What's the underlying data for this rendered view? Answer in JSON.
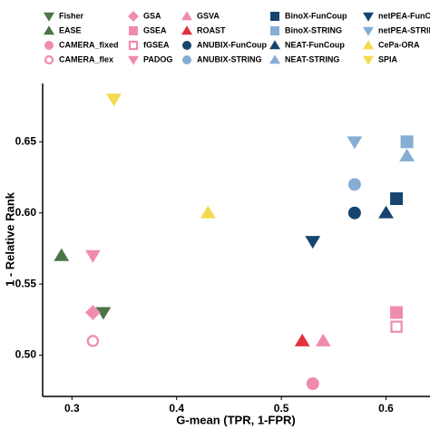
{
  "chart_data": {
    "type": "scatter",
    "x_label": "G-mean (TPR, 1-FPR)",
    "y_label": "1 - Relative Rank",
    "xlim": [
      0.272,
      0.642
    ],
    "ylim": [
      0.471,
      0.691
    ],
    "xticks": [
      0.3,
      0.4,
      0.5,
      0.6
    ],
    "yticks": [
      {
        "value": 0.5,
        "label": "0.50"
      },
      0.55,
      {
        "value": 0.6,
        "label": "0.60"
      },
      0.65
    ],
    "grid": false,
    "series": [
      {
        "name": "Fisher",
        "color": "#4b7548",
        "marker": "triangle-down",
        "filled": true,
        "x": [
          0.33
        ],
        "y": [
          0.53
        ]
      },
      {
        "name": "EASE",
        "color": "#4b7548",
        "marker": "triangle-up",
        "filled": true,
        "x": [
          0.29
        ],
        "y": [
          0.57
        ]
      },
      {
        "name": "CAMERA_fixed",
        "color": "#f08cab",
        "marker": "circle",
        "filled": true,
        "x": [
          0.53
        ],
        "y": [
          0.48
        ]
      },
      {
        "name": "CAMERA_flex",
        "color": "#f08cab",
        "marker": "circle",
        "filled": false,
        "x": [
          0.32
        ],
        "y": [
          0.51
        ]
      },
      {
        "name": "GSA",
        "color": "#f08cab",
        "marker": "diamond",
        "filled": true,
        "x": [
          0.32
        ],
        "y": [
          0.53
        ]
      },
      {
        "name": "GSEA",
        "color": "#f08cab",
        "marker": "square",
        "filled": true,
        "x": [
          0.61
        ],
        "y": [
          0.53
        ]
      },
      {
        "name": "fGSEA",
        "color": "#f08cab",
        "marker": "square",
        "filled": false,
        "x": [
          0.61
        ],
        "y": [
          0.52
        ]
      },
      {
        "name": "PADOG",
        "color": "#f08cab",
        "marker": "triangle-down",
        "filled": true,
        "x": [
          0.32
        ],
        "y": [
          0.57
        ]
      },
      {
        "name": "GSVA",
        "color": "#f08cab",
        "marker": "triangle-up",
        "filled": true,
        "x": [
          0.54
        ],
        "y": [
          0.51
        ]
      },
      {
        "name": "ROAST",
        "color": "#e2303d",
        "marker": "triangle-up",
        "filled": true,
        "x": [
          0.52
        ],
        "y": [
          0.51
        ]
      },
      {
        "name": "ANUBIX-FunCoup",
        "color": "#17446f",
        "marker": "circle",
        "filled": true,
        "x": [
          0.57
        ],
        "y": [
          0.6
        ]
      },
      {
        "name": "ANUBIX-STRING",
        "color": "#86add4",
        "marker": "circle",
        "filled": true,
        "x": [
          0.57
        ],
        "y": [
          0.62
        ]
      },
      {
        "name": "BinoX-FunCoup",
        "color": "#17446f",
        "marker": "square",
        "filled": true,
        "x": [
          0.61
        ],
        "y": [
          0.61
        ]
      },
      {
        "name": "BinoX-STRING",
        "color": "#86add4",
        "marker": "square",
        "filled": true,
        "x": [
          0.62
        ],
        "y": [
          0.65
        ]
      },
      {
        "name": "NEAT-FunCoup",
        "color": "#17446f",
        "marker": "triangle-up",
        "filled": true,
        "x": [
          0.6
        ],
        "y": [
          0.6
        ]
      },
      {
        "name": "NEAT-STRING",
        "color": "#86add4",
        "marker": "triangle-up",
        "filled": true,
        "x": [
          0.62
        ],
        "y": [
          0.64
        ]
      },
      {
        "name": "netPEA-FunCoup",
        "color": "#17446f",
        "marker": "triangle-down",
        "filled": true,
        "x": [
          0.53
        ],
        "y": [
          0.58
        ]
      },
      {
        "name": "netPEA-STRING",
        "color": "#86add4",
        "marker": "triangle-down",
        "filled": true,
        "x": [
          0.57
        ],
        "y": [
          0.65
        ]
      },
      {
        "name": "CePa-ORA",
        "color": "#f5d94c",
        "marker": "triangle-up",
        "filled": true,
        "x": [
          0.43
        ],
        "y": [
          0.6
        ]
      },
      {
        "name": "SPIA",
        "color": "#f5d94c",
        "marker": "triangle-down",
        "filled": true,
        "x": [
          0.34
        ],
        "y": [
          0.68
        ]
      }
    ]
  }
}
